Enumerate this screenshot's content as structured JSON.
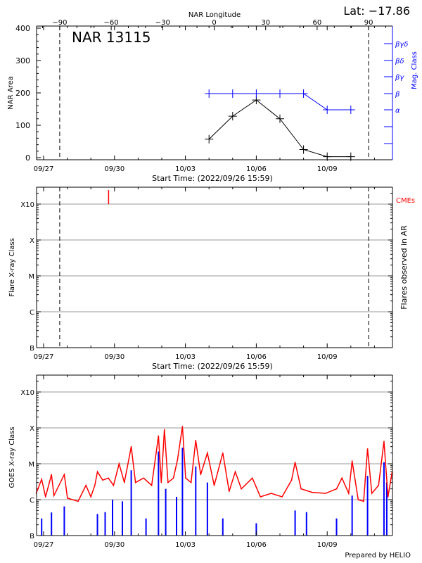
{
  "colors": {
    "axis": "#000000",
    "mag_class": "#0000ff",
    "cme": "#ff0000",
    "goes_long": "#ff0000",
    "goes_short": "#0000ff",
    "grid": "#999999"
  },
  "footer": "Prepared by HELIO",
  "time_ticks": [
    "09/27",
    "09/30",
    "10/03",
    "10/06",
    "10/09"
  ],
  "start_time_label": "Start Time: (2022/09/26 15:59)",
  "class_ticks": [
    "B",
    "C",
    "M",
    "X",
    "X10"
  ],
  "chart_data": [
    {
      "type": "line",
      "title": "NAR 13115",
      "latitude_label": "Lat: −17.86",
      "top_axis": {
        "label": "NAR Longitude",
        "ticks": [
          -90,
          -60,
          -30,
          0,
          30,
          60,
          90
        ]
      },
      "ylabel": "NAR Area",
      "ylim": [
        0,
        400
      ],
      "yticks": [
        0,
        100,
        200,
        300,
        400
      ],
      "y2label": "Mag. Class",
      "y2ticks": [
        "α",
        "β",
        "βγ",
        "βδ",
        "βγδ"
      ],
      "xlabel": "Start Time: (2022/09/26 15:59)",
      "xlim": [
        "2022-09-26T16:00",
        "2022-10-11T18:00"
      ],
      "limb_markers_longitude": [
        -90,
        90
      ],
      "x": [
        "2022-10-04",
        "2022-10-05",
        "2022-10-06",
        "2022-10-07",
        "2022-10-08",
        "2022-10-09",
        "2022-10-10"
      ],
      "series": [
        {
          "axis": "NAR Area",
          "values": [
            57,
            128,
            178,
            120,
            25,
            3,
            3
          ]
        },
        {
          "axis": "Mag. Class",
          "values": [
            "β",
            "β",
            "β",
            "β",
            "β",
            "α",
            "α"
          ]
        }
      ]
    },
    {
      "type": "scatter",
      "ylabel": "Flare X-ray Class",
      "y2label": "Flares observed in AR",
      "xlabel": "Start Time: (2022/09/26 15:59)",
      "ylim_class": [
        "B",
        "X10"
      ],
      "grid": true,
      "cme_label": "CMEs",
      "cmes": [
        "2022-09-29T18:00"
      ],
      "flares": []
    },
    {
      "type": "line",
      "ylabel": "GOES X-ray Class",
      "ylim_flux": [
        1e-07,
        0.0016
      ],
      "yscale": "log",
      "grid": true,
      "series": [
        {
          "channel": "long",
          "color": "#ff0000",
          "points": [
            [
              "2022-09-26T16:30",
              1.5e-06
            ],
            [
              "2022-09-26T22:00",
              3.7e-06
            ],
            [
              "2022-09-27T02:00",
              1.2e-06
            ],
            [
              "2022-09-27T08:00",
              5e-06
            ],
            [
              "2022-09-27T10:30",
              1.3e-06
            ],
            [
              "2022-09-27T21:00",
              5e-06
            ],
            [
              "2022-09-28T00:15",
              1.1e-06
            ],
            [
              "2022-09-28T11:00",
              9e-07
            ],
            [
              "2022-09-28T19:00",
              2.5e-06
            ],
            [
              "2022-09-29T00:00",
              1.2e-06
            ],
            [
              "2022-09-29T04:00",
              2.5e-06
            ],
            [
              "2022-09-29T06:40",
              6e-06
            ],
            [
              "2022-09-29T12:00",
              3.5e-06
            ],
            [
              "2022-09-29T17:45",
              4e-06
            ],
            [
              "2022-09-29T23:00",
              2.5e-06
            ],
            [
              "2022-09-30T04:40",
              1e-05
            ],
            [
              "2022-09-30T10:00",
              3e-06
            ],
            [
              "2022-09-30T17:00",
              3e-05
            ],
            [
              "2022-09-30T21:20",
              3e-06
            ],
            [
              "2022-10-01T05:30",
              4e-06
            ],
            [
              "2022-10-01T13:45",
              2.5e-06
            ],
            [
              "2022-10-01T20:40",
              6e-05
            ],
            [
              "2022-10-01T23:30",
              3e-06
            ],
            [
              "2022-10-02T02:40",
              9e-05
            ],
            [
              "2022-10-02T06:20",
              3e-06
            ],
            [
              "2022-10-02T11:50",
              4e-06
            ],
            [
              "2022-10-02T16:00",
              1.3e-05
            ],
            [
              "2022-10-02T21:00",
              0.00011
            ],
            [
              "2022-10-03T00:15",
              4e-06
            ],
            [
              "2022-10-03T05:45",
              3e-06
            ],
            [
              "2022-10-03T10:30",
              4.5e-05
            ],
            [
              "2022-10-03T15:30",
              5e-06
            ],
            [
              "2022-10-03T22:20",
              2e-05
            ],
            [
              "2022-10-04T05:15",
              2.5e-06
            ],
            [
              "2022-10-04T14:00",
              2e-05
            ],
            [
              "2022-10-04T20:25",
              1.7e-06
            ],
            [
              "2022-10-05T02:40",
              6e-06
            ],
            [
              "2022-10-05T08:50",
              2e-06
            ],
            [
              "2022-10-05T20:00",
              4e-06
            ],
            [
              "2022-10-06T04:10",
              1.2e-06
            ],
            [
              "2022-10-06T15:10",
              1.5e-06
            ],
            [
              "2022-10-07T02:10",
              1.2e-06
            ],
            [
              "2022-10-07T11:50",
              3.5e-06
            ],
            [
              "2022-10-07T15:25",
              1.1e-05
            ],
            [
              "2022-10-07T21:30",
              2e-06
            ],
            [
              "2022-10-08T08:40",
              1.6e-06
            ],
            [
              "2022-10-08T22:20",
              1.5e-06
            ],
            [
              "2022-10-09T09:30",
              2e-06
            ],
            [
              "2022-10-09T15:00",
              4e-06
            ],
            [
              "2022-10-09T21:50",
              1.5e-06
            ],
            [
              "2022-10-10T01:20",
              1.2e-05
            ],
            [
              "2022-10-10T07:30",
              1e-06
            ],
            [
              "2022-10-10T13:00",
              9e-07
            ],
            [
              "2022-10-10T17:00",
              2.6e-05
            ],
            [
              "2022-10-10T21:20",
              1.5e-06
            ],
            [
              "2022-10-11T04:10",
              2.5e-06
            ],
            [
              "2022-10-11T09:40",
              4.2e-05
            ],
            [
              "2022-10-11T13:45",
              1.2e-06
            ],
            [
              "2022-10-11T18:00",
              6e-06
            ]
          ]
        },
        {
          "channel": "short",
          "color": "#0000ff",
          "points": [
            [
              "2022-09-26T22:00",
              3e-07
            ],
            [
              "2022-09-27T08:00",
              4.4e-07
            ],
            [
              "2022-09-27T21:00",
              6.5e-07
            ],
            [
              "2022-09-29T06:40",
              4e-07
            ],
            [
              "2022-09-29T14:30",
              4.5e-07
            ],
            [
              "2022-09-29T22:00",
              1e-06
            ],
            [
              "2022-09-30T08:00",
              9e-07
            ],
            [
              "2022-09-30T17:00",
              6.6e-06
            ],
            [
              "2022-10-01T08:00",
              3e-07
            ],
            [
              "2022-10-01T20:40",
              2.2e-05
            ],
            [
              "2022-10-02T04:00",
              2e-06
            ],
            [
              "2022-10-02T15:00",
              1.2e-06
            ],
            [
              "2022-10-02T21:00",
              2.8e-05
            ],
            [
              "2022-10-03T10:30",
              8.4e-06
            ],
            [
              "2022-10-03T22:20",
              3e-06
            ],
            [
              "2022-10-04T14:00",
              3e-07
            ],
            [
              "2022-10-06T00:00",
              2.2e-07
            ],
            [
              "2022-10-07T15:25",
              5e-07
            ],
            [
              "2022-10-08T03:00",
              4.5e-07
            ],
            [
              "2022-10-09T09:30",
              3e-07
            ],
            [
              "2022-10-10T01:20",
              1.3e-06
            ],
            [
              "2022-10-10T17:00",
              4.6e-06
            ],
            [
              "2022-10-11T09:40",
              1.1e-05
            ],
            [
              "2022-10-11T12:30",
              3e-06
            ]
          ]
        }
      ]
    }
  ]
}
